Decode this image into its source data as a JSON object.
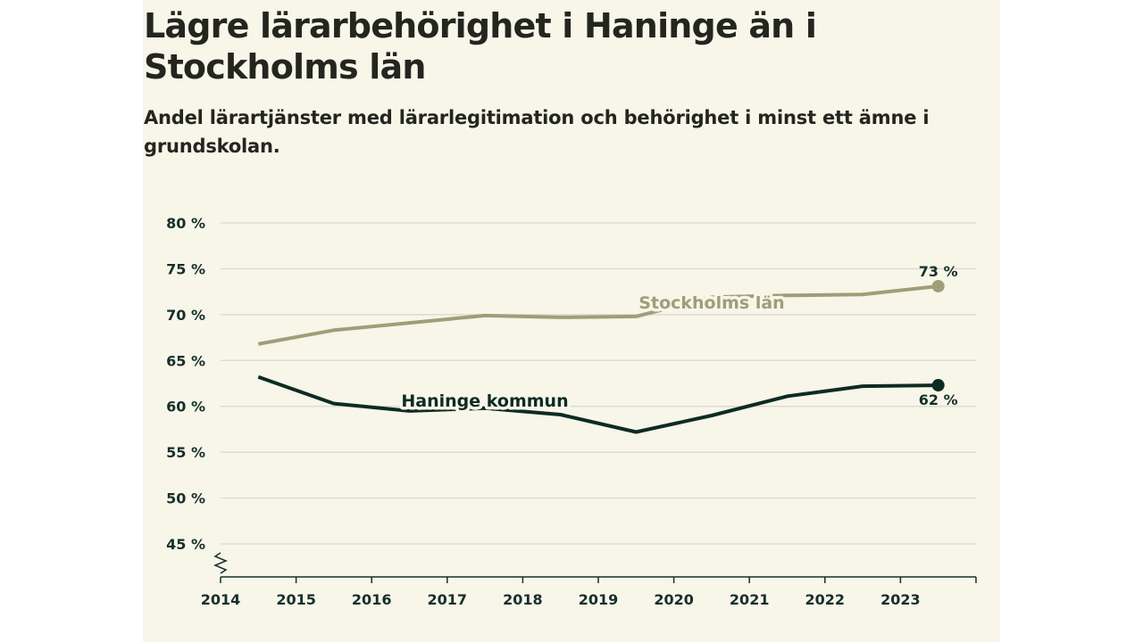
{
  "header": {
    "title": "Lägre lärarbehörighet i Haninge än i Stockholms län",
    "subtitle": "Andel lärartjänster med lärarlegitimation och behörighet i minst ett ämne i grundskolan."
  },
  "colors": {
    "panel_background": "#f8f5e9",
    "gridline": "#d9d7cd",
    "axis": "#15302b",
    "stockholm": "#a09d78",
    "haninge": "#0d2b22"
  },
  "chart_data": {
    "type": "line",
    "title": "Lägre lärarbehörighet i Haninge än i Stockholms län",
    "subtitle": "Andel lärartjänster med lärarlegitimation och behörighet i minst ett ämne i grundskolan.",
    "x_axis": {
      "min": 2014,
      "max": 2024,
      "ticks": [
        2014,
        2015,
        2016,
        2017,
        2018,
        2019,
        2020,
        2021,
        2022,
        2023
      ],
      "tick_labels": [
        "2014",
        "2015",
        "2016",
        "2017",
        "2018",
        "2019",
        "2020",
        "2021",
        "2022",
        "2023"
      ]
    },
    "y_axis": {
      "min": 45,
      "max": 80,
      "axis_break": true,
      "ticks": [
        80,
        75,
        70,
        65,
        60,
        55,
        50,
        45
      ],
      "tick_labels": [
        "80 %",
        "75 %",
        "70 %",
        "65 %",
        "60 %",
        "55 %",
        "50 %",
        "45 %"
      ]
    },
    "grid": true,
    "series": [
      {
        "name": "Stockholms län",
        "color": "#a09d78",
        "x": [
          2014.5,
          2015.5,
          2016.5,
          2017.5,
          2018.5,
          2019.5,
          2020.5,
          2021.5,
          2022.5,
          2023.5
        ],
        "values": [
          66.8,
          68.3,
          69.1,
          69.9,
          69.7,
          69.8,
          71.9,
          72.1,
          72.2,
          73.1
        ],
        "end_label": "73 %"
      },
      {
        "name": "Haninge kommun",
        "color": "#0d2b22",
        "x": [
          2014.5,
          2015.5,
          2016.5,
          2017.5,
          2018.5,
          2019.5,
          2020.5,
          2021.5,
          2022.5,
          2023.5
        ],
        "values": [
          63.2,
          60.3,
          59.5,
          59.8,
          59.1,
          57.2,
          59.0,
          61.1,
          62.2,
          62.3
        ],
        "end_label": "62 %"
      }
    ]
  }
}
